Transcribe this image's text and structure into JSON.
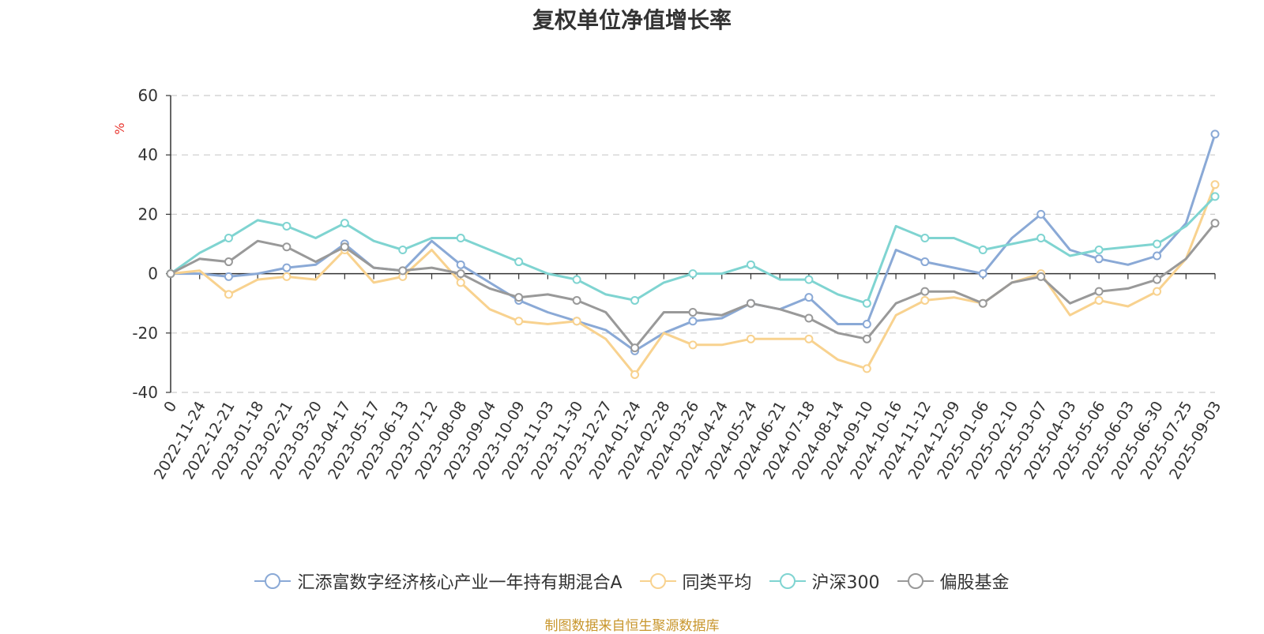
{
  "chart_data": {
    "type": "line",
    "title": "复权单位净值增长率",
    "ylabel": "%",
    "ylim": [
      -40,
      60
    ],
    "yticks": [
      -40,
      -20,
      0,
      20,
      40,
      60
    ],
    "grid": true,
    "legend_position": "bottom",
    "source_note": "制图数据来自恒生聚源数据库",
    "x_tick_labels": [
      "0",
      "2022-11-24",
      "2022-12-21",
      "2023-01-18",
      "2023-02-21",
      "2023-03-20",
      "2023-04-17",
      "2023-05-17",
      "2023-06-13",
      "2023-07-12",
      "2023-08-08",
      "2023-09-04",
      "2023-10-09",
      "2023-11-03",
      "2023-11-30",
      "2023-12-27",
      "2024-01-24",
      "2024-02-28",
      "2024-03-26",
      "2024-04-24",
      "2024-05-24",
      "2024-06-21",
      "2024-07-18",
      "2024-08-14",
      "2024-09-10",
      "2024-10-16",
      "2024-11-12",
      "2024-12-09",
      "2025-01-06",
      "2025-02-10",
      "2025-03-07",
      "2025-04-03",
      "2025-05-06",
      "2025-06-03",
      "2025-06-30",
      "2025-07-25",
      "2025-09-03"
    ],
    "series": [
      {
        "name": "汇添富数字经济核心产业一年持有期混合A",
        "color": "#8aa9d6",
        "values": [
          0,
          0,
          -1,
          0,
          2,
          3,
          10,
          2,
          1,
          11,
          3,
          -3,
          -9,
          -13,
          -16,
          -19,
          -26,
          -20,
          -16,
          -15,
          -10,
          -12,
          -8,
          -17,
          -17,
          8,
          4,
          2,
          0,
          12,
          20,
          8,
          5,
          3,
          6,
          17,
          47
        ]
      },
      {
        "name": "同类平均",
        "color": "#f8d28f",
        "values": [
          0,
          1,
          -7,
          -2,
          -1,
          -2,
          8,
          -3,
          -1,
          8,
          -3,
          -12,
          -16,
          -17,
          -16,
          -22,
          -34,
          -20,
          -24,
          -24,
          -22,
          -22,
          -22,
          -29,
          -32,
          -14,
          -9,
          -8,
          -10,
          -3,
          0,
          -14,
          -9,
          -11,
          -6,
          5,
          30
        ]
      },
      {
        "name": "沪深300",
        "color": "#7fd4d1",
        "values": [
          0,
          7,
          12,
          18,
          16,
          12,
          17,
          11,
          8,
          12,
          12,
          8,
          4,
          0,
          -2,
          -7,
          -9,
          -3,
          0,
          0,
          3,
          -2,
          -2,
          -7,
          -10,
          16,
          12,
          12,
          8,
          10,
          12,
          6,
          8,
          9,
          10,
          16,
          26
        ]
      },
      {
        "name": "偏股基金",
        "color": "#999999",
        "values": [
          0,
          5,
          4,
          11,
          9,
          4,
          9,
          2,
          1,
          2,
          0,
          -5,
          -8,
          -7,
          -9,
          -13,
          -25,
          -13,
          -13,
          -14,
          -10,
          -12,
          -15,
          -20,
          -22,
          -10,
          -6,
          -6,
          -10,
          -3,
          -1,
          -10,
          -6,
          -5,
          -2,
          5,
          17
        ]
      }
    ]
  }
}
